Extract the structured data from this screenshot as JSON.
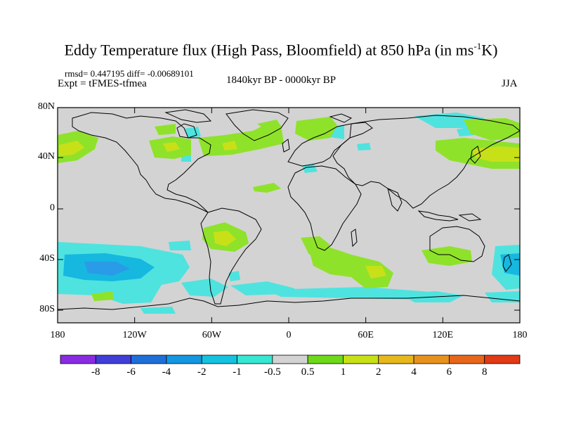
{
  "title": {
    "main": "Eddy Temperature flux (High Pass, Bloomfield) at 850 hPa (in ms",
    "sup": "-1",
    "tail": "K)"
  },
  "stats_line": "rmsd= 0.447195 diff= -0.00689101",
  "expt_line": "Expt = tFMES-tfmea",
  "period": "1840kyr BP - 0000kyr BP",
  "season": "JJA",
  "map": {
    "background_color": "#d3d3d3",
    "coast_color": "#000000",
    "x_ticks": [
      "180",
      "120W",
      "60W",
      "0",
      "60E",
      "120E",
      "180"
    ],
    "y_ticks": [
      "80N",
      "40N",
      "0",
      "40S",
      "80S"
    ]
  },
  "colorbar": {
    "labels": [
      "-8",
      "-6",
      "-4",
      "-2",
      "-1",
      "-0.5",
      "0.5",
      "1",
      "2",
      "4",
      "6",
      "8"
    ],
    "colors": [
      "#8a2be2",
      "#3f3fd8",
      "#1e6fd8",
      "#1496e0",
      "#15c2e0",
      "#38e6d2",
      "#d3d3d3",
      "#6ed81a",
      "#c8e018",
      "#e6b81e",
      "#e8921e",
      "#e6661c",
      "#e03a16"
    ]
  },
  "anomaly_colors": {
    "pos1": "#8fe22a",
    "pos2": "#c8e018",
    "neg1": "#4fe3df",
    "neg2": "#16b8e0",
    "neg3": "#2a9be6"
  }
}
